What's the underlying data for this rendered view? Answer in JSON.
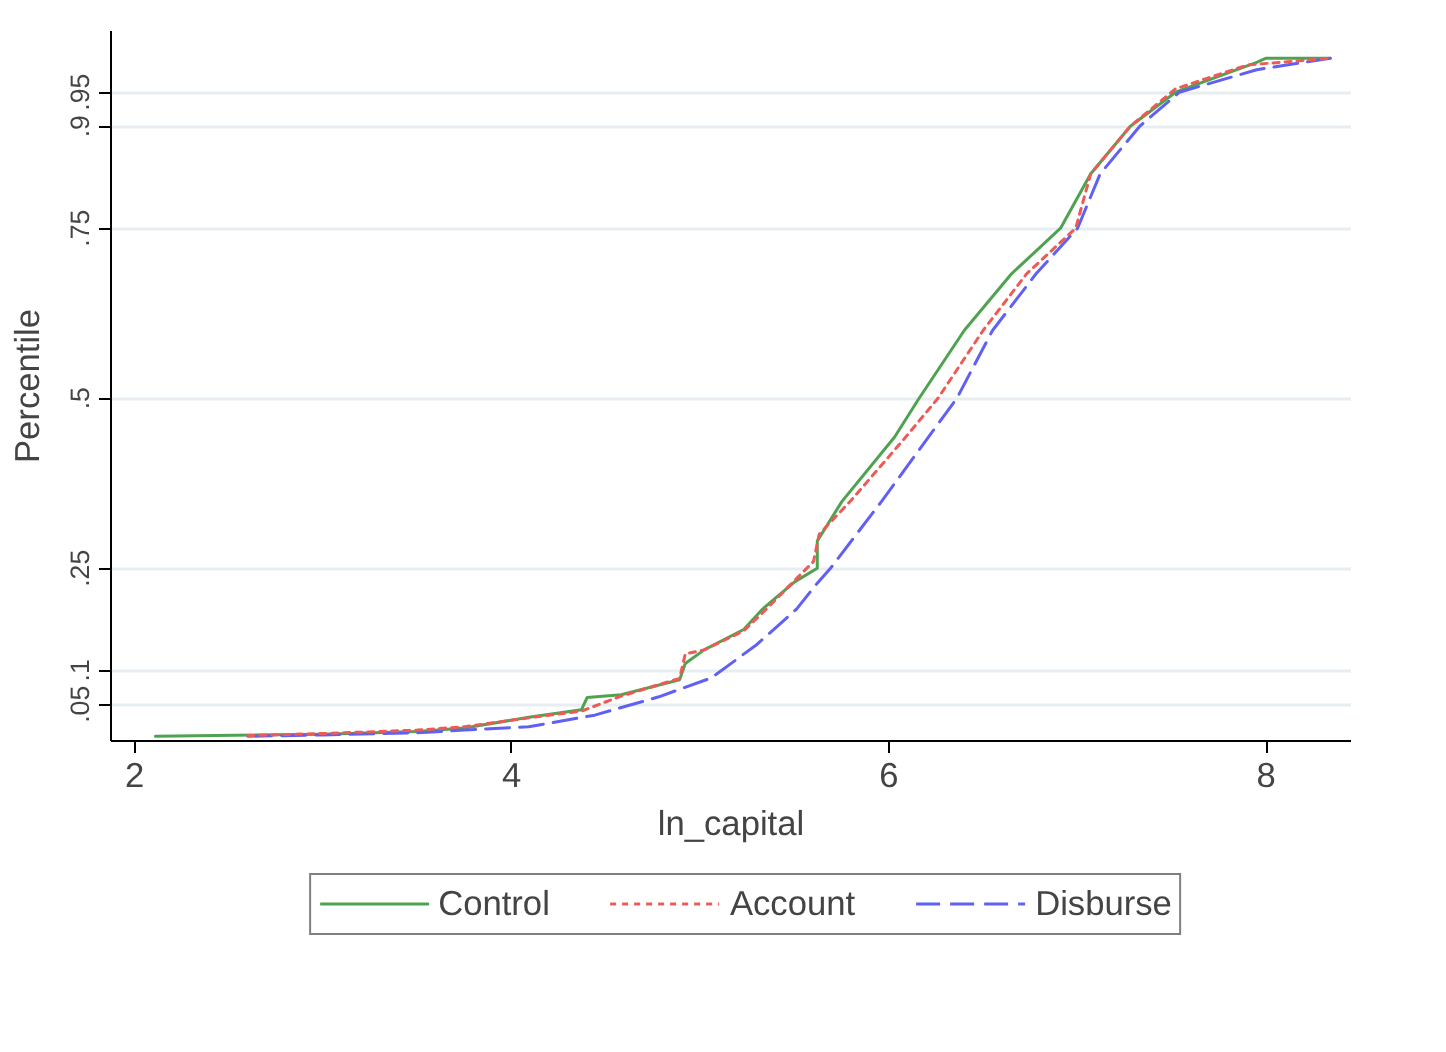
{
  "chart_data": {
    "type": "line",
    "xlabel": "ln_capital",
    "ylabel": "Percentile",
    "xlim": [
      1.875,
      8.45
    ],
    "xticks": [
      2,
      4,
      6,
      8
    ],
    "ylim": [
      -0.004,
      1.04
    ],
    "yticks": [
      {
        "value": 0.05,
        "label": ".05"
      },
      {
        "value": 0.1,
        "label": ".1"
      },
      {
        "value": 0.25,
        "label": ".25"
      },
      {
        "value": 0.5,
        "label": ".5"
      },
      {
        "value": 0.75,
        "label": ".75"
      },
      {
        "value": 0.9,
        "label": ".9"
      },
      {
        "value": 0.95,
        "label": ".95"
      }
    ],
    "grid": "y",
    "legend": "bottom",
    "marker": "none",
    "series": [
      {
        "name": "Control",
        "color": "#4fa24f",
        "line_style": "solid",
        "x": [
          2.11,
          3.0,
          3.5,
          3.75,
          4.09,
          4.37,
          4.4,
          4.58,
          4.89,
          4.92,
          5.02,
          5.23,
          5.33,
          5.5,
          5.62,
          5.62,
          5.75,
          6.03,
          6.16,
          6.4,
          6.65,
          6.91,
          7.07,
          7.28,
          7.52,
          7.95,
          8.0,
          8.34
        ],
        "values": [
          0.003,
          0.006,
          0.01,
          0.015,
          0.031,
          0.042,
          0.06,
          0.064,
          0.086,
          0.11,
          0.13,
          0.16,
          0.19,
          0.23,
          0.25,
          0.29,
          0.348,
          0.443,
          0.5,
          0.6,
          0.683,
          0.75,
          0.83,
          0.9,
          0.95,
          0.994,
          1.0,
          1.0
        ]
      },
      {
        "name": "Account",
        "color": "#ee5a55",
        "line_style": "dotted",
        "x": [
          2.6,
          3.0,
          3.5,
          3.75,
          4.09,
          4.37,
          4.58,
          4.89,
          4.92,
          5.02,
          5.23,
          5.35,
          5.6,
          5.63,
          5.8,
          6.08,
          6.26,
          6.5,
          6.73,
          6.99,
          7.07,
          7.28,
          7.52,
          7.9,
          8.34
        ],
        "values": [
          0.004,
          0.007,
          0.012,
          0.017,
          0.03,
          0.04,
          0.062,
          0.088,
          0.124,
          0.13,
          0.158,
          0.19,
          0.26,
          0.3,
          0.35,
          0.44,
          0.5,
          0.6,
          0.683,
          0.75,
          0.83,
          0.9,
          0.955,
          0.99,
          1.0
        ]
      },
      {
        "name": "Disburse",
        "color": "#6060f5",
        "line_style": "dashed",
        "x": [
          2.6,
          3.0,
          3.5,
          3.75,
          4.09,
          4.44,
          4.78,
          5.06,
          5.3,
          5.51,
          5.62,
          5.69,
          5.96,
          6.36,
          6.55,
          6.78,
          7.0,
          7.12,
          7.33,
          7.54,
          7.95,
          8.34
        ],
        "values": [
          0.003,
          0.005,
          0.008,
          0.012,
          0.017,
          0.034,
          0.061,
          0.089,
          0.138,
          0.19,
          0.228,
          0.25,
          0.348,
          0.5,
          0.6,
          0.683,
          0.75,
          0.83,
          0.9,
          0.95,
          0.983,
          1.0
        ]
      }
    ]
  }
}
